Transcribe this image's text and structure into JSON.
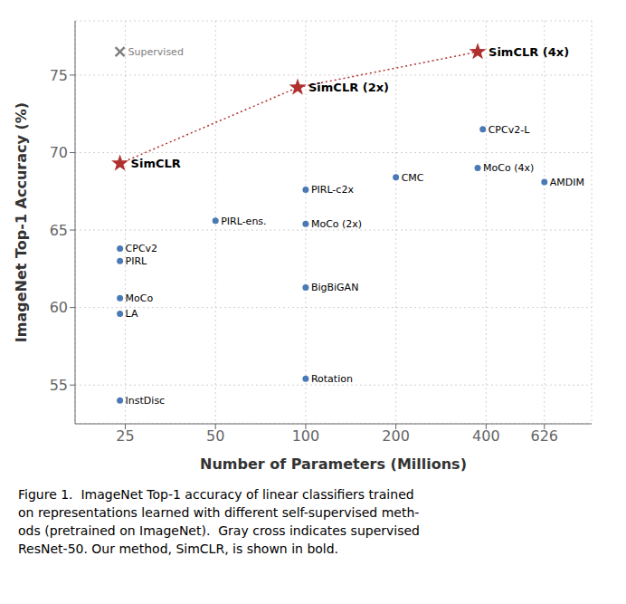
{
  "chart_data": {
    "type": "scatter",
    "xlabel": "Number of Parameters (Millions)",
    "ylabel": "ImageNet Top-1 Accuracy (%)",
    "log": "x",
    "xlim": [
      17,
      900
    ],
    "ylim": [
      52.5,
      78.5
    ],
    "xticks": [
      25,
      50,
      100,
      200,
      400,
      626
    ],
    "yticks": [
      55,
      60,
      65,
      70,
      75
    ],
    "grid": true,
    "series": [
      {
        "color": "#4a7ab5",
        "marker": "circle",
        "labels": [
          "InstDisc",
          "CPCv2",
          "PIRL",
          "MoCo",
          "LA",
          "PIRL-ens.",
          "PIRL-c2x",
          "MoCo (2x)",
          "BigBiGAN",
          "Rotation",
          "CMC",
          "CPCv2-L",
          "MoCo (4x)",
          "AMDIM"
        ],
        "x": [
          24,
          24,
          24,
          24,
          24,
          50,
          100,
          100,
          100,
          100,
          200,
          390,
          375,
          626
        ],
        "values": [
          54.0,
          63.8,
          63.0,
          60.6,
          59.6,
          65.6,
          67.6,
          65.4,
          61.3,
          55.4,
          68.4,
          71.5,
          69.0,
          68.1
        ]
      },
      {
        "color": "#b03030",
        "marker": "star",
        "line_style": "dotted",
        "labels": [
          "SimCLR",
          "SimCLR (2x)",
          "SimCLR (4x)"
        ],
        "x": [
          24,
          94,
          375
        ],
        "values": [
          69.3,
          74.2,
          76.5
        ]
      },
      {
        "color": "#808080",
        "marker": "x",
        "labels": [
          "Supervised"
        ],
        "x": [
          24
        ],
        "values": [
          76.5
        ]
      }
    ],
    "caption": "Figure 1.  ImageNet Top-1 accuracy of linear classifiers trained\non representations learned with different self-supervised meth-\nods (pretrained on ImageNet).  Gray cross indicates supervised\nResNet-50. Our method, SimCLR, is shown in bold."
  }
}
